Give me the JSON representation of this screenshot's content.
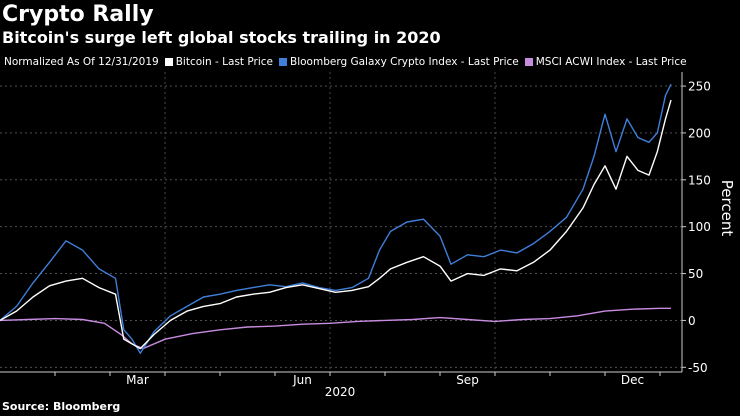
{
  "title": "Crypto Rally",
  "subtitle": "Bitcoin's surge left global stocks trailing in 2020",
  "source": "Source: Bloomberg",
  "legend": {
    "note": "Normalized As Of 12/31/2019",
    "items": [
      {
        "label": "Bitcoin - Last Price",
        "color": "#ffffff"
      },
      {
        "label": "Bloomberg Galaxy Crypto Index - Last Price",
        "color": "#3f7fd9"
      },
      {
        "label": "MSCI ACWI Index - Last Price",
        "color": "#c78be0"
      }
    ]
  },
  "chart_data": {
    "type": "line",
    "title": "Crypto Rally",
    "subtitle": "Bitcoin's surge left global stocks trailing in 2020",
    "xlabel": "2020",
    "ylabel": "Percent",
    "ylim": [
      -55,
      265
    ],
    "xlim": [
      0,
      12.4
    ],
    "y_ticks": [
      -50,
      0,
      50,
      100,
      150,
      200,
      250
    ],
    "x_ticks": [
      {
        "label": "Mar",
        "pos": 2.5
      },
      {
        "label": "Jun",
        "pos": 5.5
      },
      {
        "label": "Sep",
        "pos": 8.5
      },
      {
        "label": "Dec",
        "pos": 11.5
      }
    ],
    "vgrid_at": [
      3,
      6,
      9
    ],
    "series": [
      {
        "name": "Bitcoin - Last Price",
        "color": "#ffffff",
        "x": [
          0,
          0.3,
          0.6,
          0.9,
          1.2,
          1.5,
          1.8,
          2.1,
          2.25,
          2.4,
          2.55,
          2.8,
          3.1,
          3.4,
          3.7,
          4.0,
          4.3,
          4.6,
          4.9,
          5.2,
          5.5,
          5.8,
          6.1,
          6.4,
          6.7,
          6.9,
          7.1,
          7.4,
          7.7,
          8.0,
          8.2,
          8.5,
          8.8,
          9.1,
          9.4,
          9.7,
          10.0,
          10.3,
          10.6,
          10.8,
          11.0,
          11.2,
          11.4,
          11.6,
          11.8,
          11.95,
          12.1,
          12.2
        ],
        "values": [
          0,
          10,
          25,
          37,
          42,
          45,
          35,
          28,
          -20,
          -25,
          -30,
          -15,
          0,
          10,
          15,
          18,
          25,
          28,
          30,
          35,
          38,
          34,
          30,
          32,
          36,
          45,
          55,
          62,
          68,
          58,
          42,
          50,
          48,
          55,
          53,
          62,
          75,
          95,
          120,
          145,
          165,
          140,
          175,
          160,
          155,
          180,
          215,
          235
        ]
      },
      {
        "name": "Bloomberg Galaxy Crypto Index - Last Price",
        "color": "#3f7fd9",
        "x": [
          0,
          0.3,
          0.6,
          0.9,
          1.2,
          1.5,
          1.8,
          2.1,
          2.25,
          2.4,
          2.55,
          2.8,
          3.1,
          3.4,
          3.7,
          4.0,
          4.3,
          4.6,
          4.9,
          5.2,
          5.5,
          5.8,
          6.1,
          6.4,
          6.7,
          6.9,
          7.1,
          7.4,
          7.7,
          8.0,
          8.2,
          8.5,
          8.8,
          9.1,
          9.4,
          9.7,
          10.0,
          10.3,
          10.6,
          10.8,
          11.0,
          11.2,
          11.4,
          11.6,
          11.8,
          11.95,
          12.1,
          12.2
        ],
        "values": [
          0,
          15,
          40,
          62,
          85,
          75,
          55,
          45,
          -10,
          -20,
          -35,
          -12,
          5,
          15,
          25,
          28,
          32,
          35,
          38,
          36,
          40,
          35,
          32,
          35,
          45,
          75,
          95,
          105,
          108,
          90,
          60,
          70,
          68,
          75,
          72,
          82,
          95,
          110,
          140,
          175,
          220,
          180,
          215,
          195,
          190,
          200,
          240,
          252
        ]
      },
      {
        "name": "MSCI ACWI Index - Last Price",
        "color": "#c78be0",
        "x": [
          0,
          0.5,
          1.0,
          1.5,
          1.9,
          2.2,
          2.4,
          2.6,
          3.0,
          3.5,
          4.0,
          4.5,
          5.0,
          5.5,
          6.0,
          6.5,
          7.0,
          7.5,
          8.0,
          8.5,
          9.0,
          9.5,
          10.0,
          10.5,
          11.0,
          11.5,
          12.0,
          12.2
        ],
        "values": [
          0,
          1,
          2,
          1,
          -3,
          -15,
          -25,
          -30,
          -20,
          -14,
          -10,
          -7,
          -6,
          -4,
          -3,
          -1,
          0,
          1,
          3,
          1,
          -1,
          1,
          2,
          5,
          10,
          12,
          13,
          13
        ]
      }
    ]
  }
}
